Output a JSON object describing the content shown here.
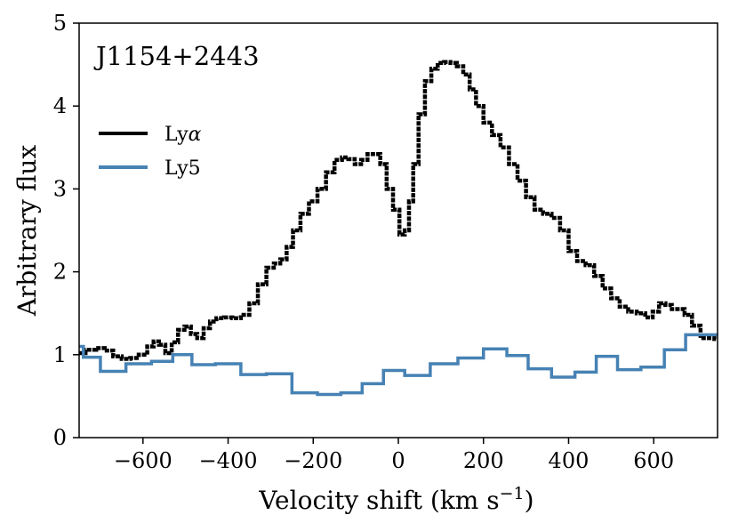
{
  "chart_data": {
    "type": "line",
    "annotation": "J1154+2443",
    "xlabel": "Velocity shift (km s",
    "xlabel_sup": "−1",
    "xlabel_close": ")",
    "ylabel": "Arbitrary flux",
    "xlim": [
      -750,
      750
    ],
    "ylim": [
      0,
      5
    ],
    "xticks": [
      -600,
      -400,
      -200,
      0,
      200,
      400,
      600
    ],
    "xtick_labels": [
      "−600",
      "−400",
      "−200",
      "0",
      "200",
      "400",
      "600"
    ],
    "yticks": [
      0,
      1,
      2,
      3,
      4,
      5
    ],
    "ytick_labels": [
      "0",
      "1",
      "2",
      "3",
      "4",
      "5"
    ],
    "legend_position": "upper-left",
    "series": [
      {
        "name": "Lyα",
        "name_base": "Ly",
        "name_italic": "α",
        "color": "#000000",
        "style": "steps-dotted",
        "x": [
          -750,
          -720,
          -700,
          -680,
          -660,
          -640,
          -620,
          -600,
          -580,
          -570,
          -555,
          -540,
          -525,
          -510,
          -495,
          -480,
          -465,
          -450,
          -435,
          -420,
          -400,
          -380,
          -360,
          -340,
          -320,
          -300,
          -285,
          -270,
          -255,
          -240,
          -220,
          -200,
          -180,
          -160,
          -140,
          -125,
          -110,
          -95,
          -80,
          -65,
          -50,
          -35,
          -20,
          -5,
          10,
          20,
          30,
          40,
          55,
          70,
          85,
          100,
          115,
          130,
          145,
          160,
          175,
          190,
          210,
          230,
          250,
          270,
          290,
          310,
          330,
          350,
          370,
          390,
          410,
          430,
          450,
          470,
          490,
          510,
          530,
          550,
          570,
          590,
          605,
          620,
          635,
          650,
          665,
          680,
          700,
          720,
          735,
          750
        ],
        "y": [
          1.02,
          1.06,
          1.08,
          1.05,
          0.98,
          0.95,
          0.96,
          1.0,
          1.1,
          1.16,
          1.12,
          1.02,
          1.15,
          1.3,
          1.34,
          1.25,
          1.2,
          1.32,
          1.4,
          1.44,
          1.45,
          1.44,
          1.48,
          1.62,
          1.85,
          2.05,
          2.1,
          2.15,
          2.3,
          2.5,
          2.7,
          2.85,
          3.0,
          3.2,
          3.35,
          3.38,
          3.36,
          3.3,
          3.35,
          3.42,
          3.42,
          3.3,
          3.0,
          2.75,
          2.45,
          2.5,
          2.85,
          3.3,
          3.9,
          4.3,
          4.45,
          4.52,
          4.53,
          4.52,
          4.48,
          4.38,
          4.2,
          4.0,
          3.8,
          3.65,
          3.5,
          3.3,
          3.1,
          2.9,
          2.75,
          2.7,
          2.65,
          2.5,
          2.25,
          2.13,
          2.08,
          1.95,
          1.8,
          1.68,
          1.58,
          1.52,
          1.5,
          1.45,
          1.52,
          1.62,
          1.6,
          1.55,
          1.55,
          1.48,
          1.35,
          1.2,
          1.2,
          1.19
        ]
      },
      {
        "name": "Ly5",
        "color": "#4682B4",
        "style": "steps",
        "x": [
          -750,
          -730,
          -670,
          -610,
          -550,
          -510,
          -460,
          -400,
          -340,
          -280,
          -220,
          -160,
          -110,
          -60,
          -10,
          40,
          110,
          170,
          230,
          280,
          330,
          390,
          440,
          490,
          540,
          600,
          650,
          700,
          740,
          750
        ],
        "y": [
          1.1,
          0.97,
          0.8,
          0.89,
          0.92,
          1.0,
          0.88,
          0.89,
          0.76,
          0.77,
          0.54,
          0.52,
          0.54,
          0.65,
          0.81,
          0.75,
          0.89,
          0.96,
          1.07,
          0.99,
          0.83,
          0.73,
          0.79,
          0.98,
          0.82,
          0.85,
          1.06,
          1.24,
          1.24,
          1.24
        ]
      }
    ]
  }
}
